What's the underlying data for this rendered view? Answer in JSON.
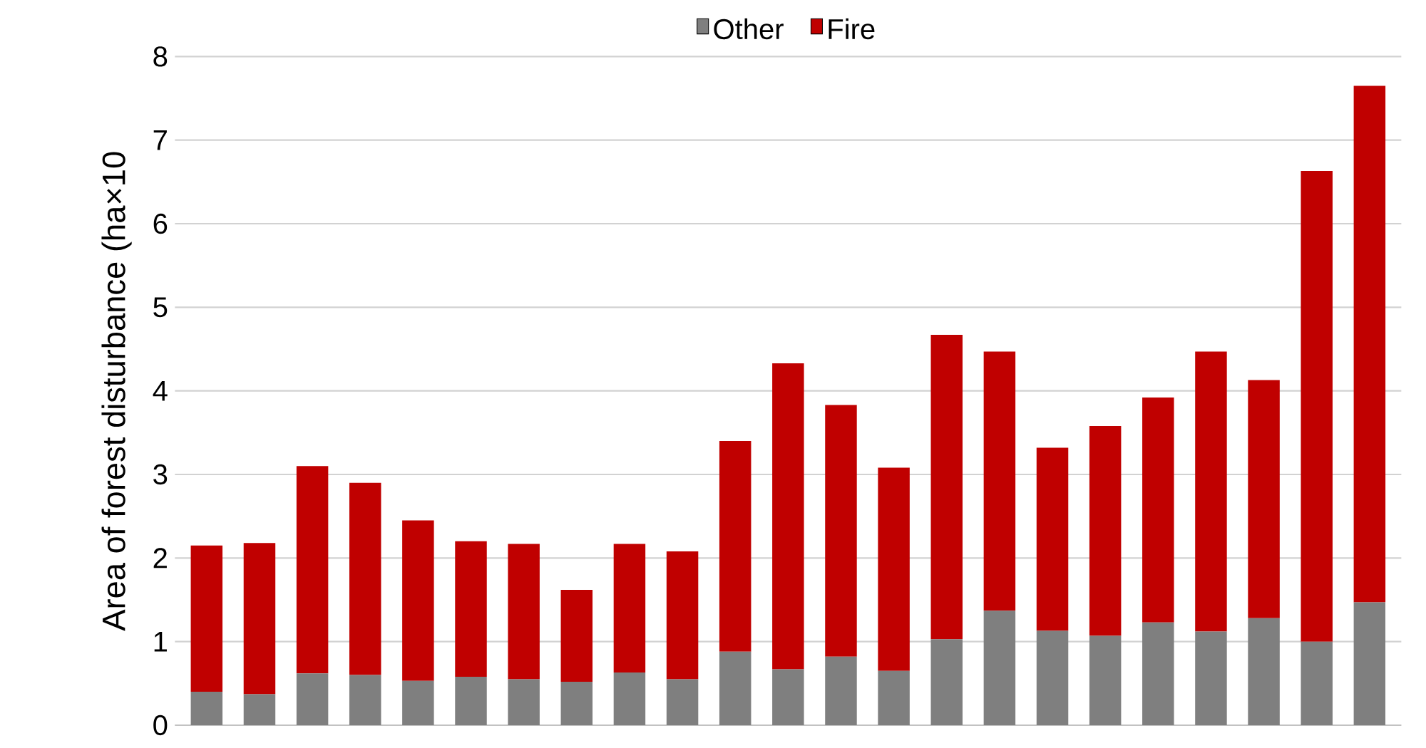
{
  "chart_data": {
    "type": "bar",
    "stacked": true,
    "ylabel": "Area of forest disturbance (ha×10",
    "categories": [
      null,
      null,
      null,
      null,
      null,
      null,
      null,
      null,
      null,
      null,
      null,
      null,
      null,
      null,
      null,
      null,
      null,
      null,
      null,
      null,
      null,
      null,
      null
    ],
    "series": [
      {
        "name": "Other",
        "color": "#7f7f7f",
        "values": [
          0.4,
          0.37,
          0.62,
          0.6,
          0.53,
          0.58,
          0.55,
          0.52,
          0.63,
          0.55,
          0.88,
          0.67,
          0.82,
          0.65,
          1.03,
          1.37,
          1.13,
          1.07,
          1.23,
          1.12,
          1.28,
          1.0,
          1.47
        ]
      },
      {
        "name": "Fire",
        "color": "#c00000",
        "values": [
          1.75,
          1.81,
          2.48,
          2.3,
          1.92,
          1.62,
          1.62,
          1.1,
          1.54,
          1.53,
          2.52,
          3.66,
          3.01,
          2.43,
          3.64,
          3.1,
          2.19,
          2.51,
          2.69,
          3.35,
          2.85,
          5.63,
          6.18
        ]
      }
    ],
    "ylim": [
      0,
      8
    ],
    "yticks": [
      0,
      1,
      2,
      3,
      4,
      5,
      6,
      7,
      8
    ],
    "grid": "y",
    "legend": "top",
    "tick_labels": "y"
  }
}
